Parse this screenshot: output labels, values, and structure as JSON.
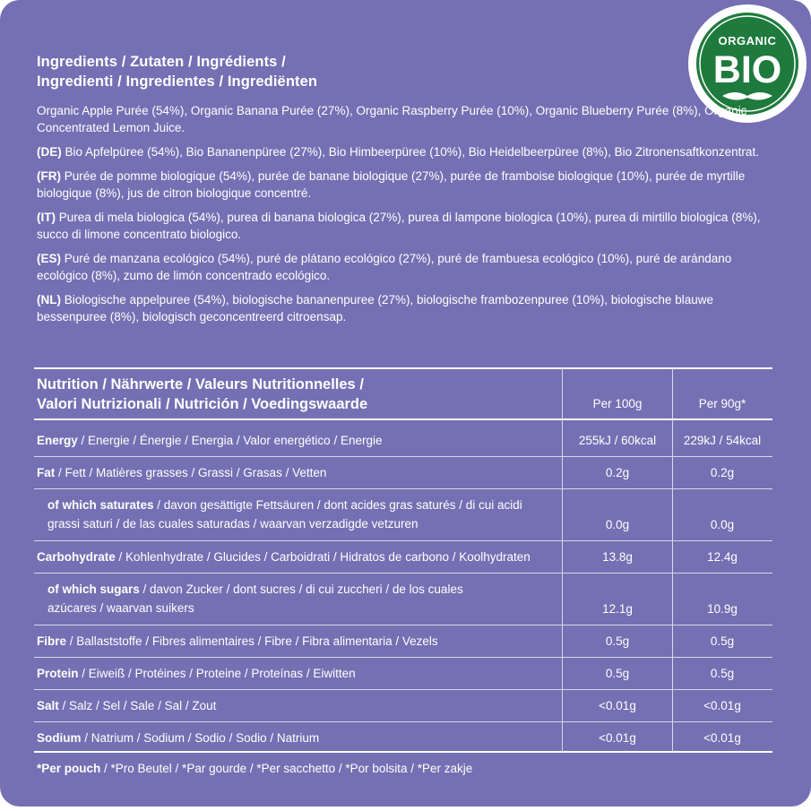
{
  "badge": {
    "top": "ORGANIC",
    "main": "BIO",
    "color": "#1f7a3d"
  },
  "ingredients": {
    "title_line1": "Ingredients / Zutaten / Ingrédients /",
    "title_line2": "Ingredienti / Ingredientes / Ingrediënten",
    "en": "Organic Apple Purée (54%), Organic Banana Purée (27%), Organic Raspberry Purée (10%), Organic Blueberry Purée (8%), Organic Concentrated Lemon Juice.",
    "de_tag": "(DE)",
    "de": "Bio Apfelpüree (54%), Bio Bananenpüree (27%), Bio Himbeerpüree (10%), Bio Heidelbeerpüree (8%), Bio Zitronensaftkonzentrat.",
    "fr_tag": "(FR)",
    "fr": "Purée de pomme biologique (54%), purée de banane biologique (27%), purée de framboise biologique (10%), purée de myrtille biologique (8%), jus de citron biologique concentré.",
    "it_tag": "(IT)",
    "it": "Purea di mela biologica (54%), purea di banana biologica (27%), purea di lampone biologica (10%), purea di mirtillo biologica (8%), succo di limone concentrato biologico.",
    "es_tag": "(ES)",
    "es": "Puré de manzana ecológico (54%), puré de plátano ecológico (27%), puré de frambuesa ecológico (10%), puré de arándano ecológico (8%), zumo de limón concentrado ecológico.",
    "nl_tag": "(NL)",
    "nl": "Biologische appelpuree (54%), biologische bananenpuree (27%), biologische frambozenpuree (10%), biologische blauwe bessenpuree (8%), biologisch geconcentreerd citroensap."
  },
  "nutrition": {
    "title_line1": "Nutrition / Nährwerte / Valeurs Nutritionnelles /",
    "title_line2": "Valori Nutrizionali / Nutrición / Voedingswaarde",
    "col1": "Per 100g",
    "col2": "Per 90g*",
    "rows": [
      {
        "bold": "Energy",
        "rest": " / Energie / Énergie / Energia / Valor energético / Energie",
        "v1": "255kJ / 60kcal",
        "v2": "229kJ / 54kcal"
      },
      {
        "bold": "Fat",
        "rest": " / Fett / Matières grasses / Grassi / Grasas / Vetten",
        "v1": "0.2g",
        "v2": "0.2g"
      },
      {
        "bold": "of which saturates",
        "rest": " / davon gesättigte Fettsäuren / dont acides gras saturés / di cui acidi grassi saturi / de las cuales saturadas / waarvan verzadigde vetzuren",
        "v1": "0.0g",
        "v2": "0.0g"
      },
      {
        "bold": "Carbohydrate",
        "rest": " / Kohlenhydrate / Glucides / Carboidrati / Hidratos de carbono / Koolhydraten",
        "v1": "13.8g",
        "v2": "12.4g"
      },
      {
        "bold": "of which sugars",
        "rest": " / davon Zucker / dont sucres / di cui zuccheri / de los cuales azúcares / waarvan suikers",
        "v1": "12.1g",
        "v2": "10.9g"
      },
      {
        "bold": "Fibre",
        "rest": " / Ballaststoffe / Fibres alimentaires / Fibre / Fibra alimentaria / Vezels",
        "v1": "0.5g",
        "v2": "0.5g"
      },
      {
        "bold": "Protein",
        "rest": " / Eiweiß / Protéines / Proteine / Proteínas / Eiwitten",
        "v1": "0.5g",
        "v2": "0.5g"
      },
      {
        "bold": "Salt",
        "rest": " / Salz / Sel / Sale / Sal / Zout",
        "v1": "<0.01g",
        "v2": "<0.01g"
      },
      {
        "bold": "Sodium",
        "rest": " / Natrium / Sodium / Sodio / Sodio / Natrium",
        "v1": "<0.01g",
        "v2": "<0.01g"
      }
    ],
    "footnote_bold": "*Per pouch",
    "footnote_rest": " / *Pro Beutel / *Par gourde / *Per sacchetto / *Por bolsita / *Per zakje"
  },
  "colors": {
    "panel": "#7570b3",
    "text": "#ffffff",
    "badge_green": "#1f7a3d"
  }
}
